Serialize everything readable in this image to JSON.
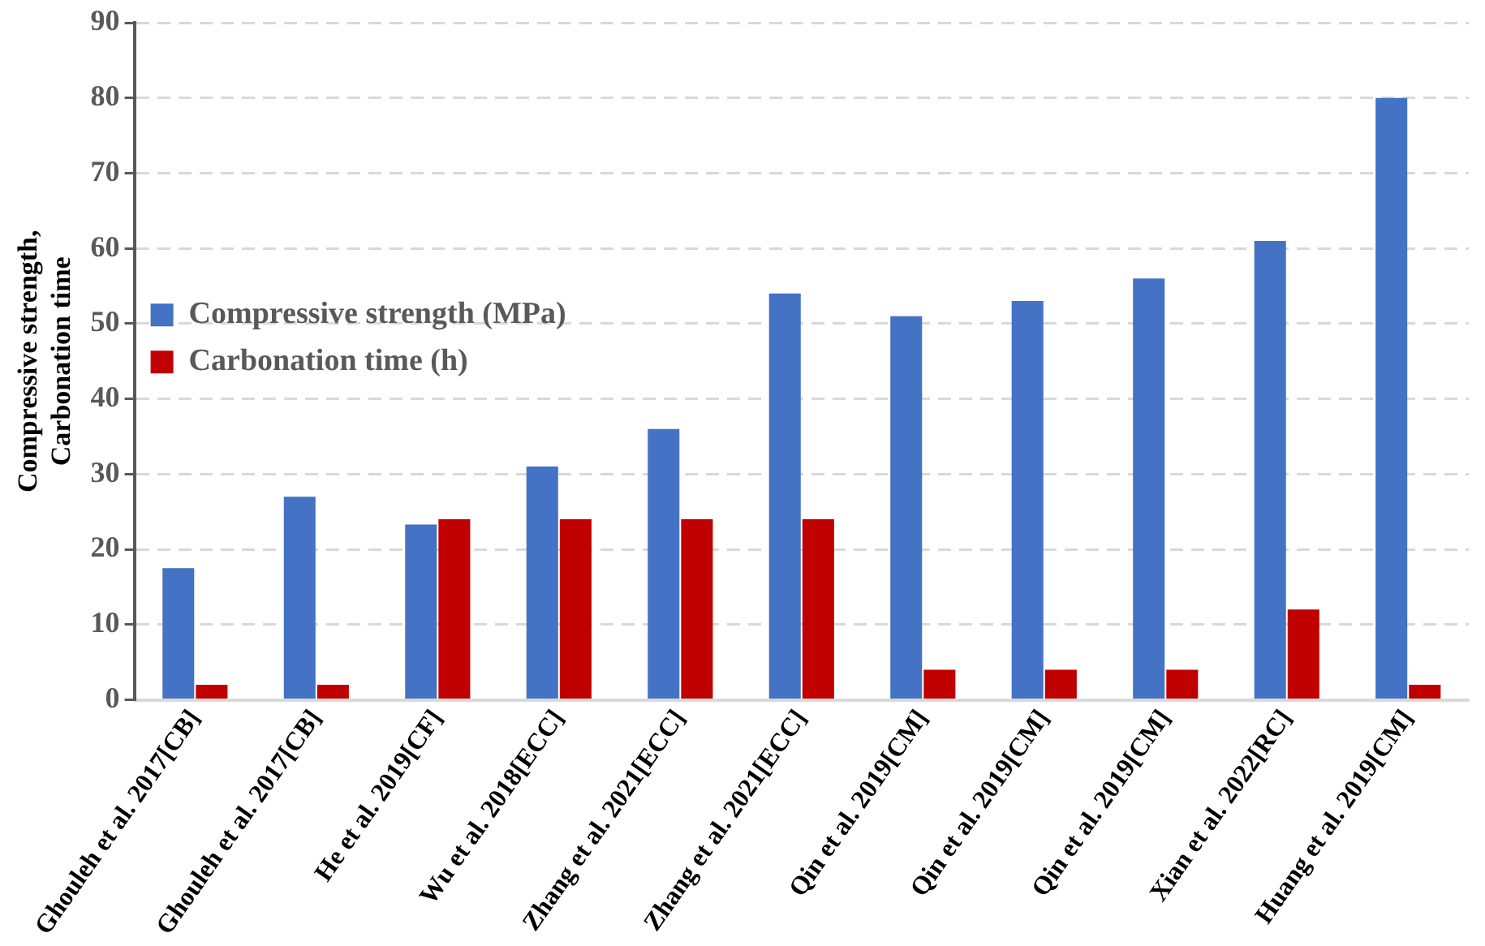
{
  "chart_data": {
    "type": "bar",
    "ylabel": "Compressive strength, Carbonation time",
    "categories": [
      "Ghouleh et al. 2017[CB]",
      "Ghouleh et al. 2017[CB]",
      "He et al. 2019[CF]",
      "Wu et al. 2018[ECC]",
      "Zhang et al. 2021[ECC]",
      "Zhang et al. 2021[ECC]",
      "Qin et al. 2019[CM]",
      "Qin et al. 2019[CM]",
      "Qin et al. 2019[CM]",
      "Xian et al. 2022[RC]",
      "Huang et al. 2019[CM]"
    ],
    "series": [
      {
        "name": "Compressive strength (MPa)",
        "color": "#4472c4",
        "values": [
          17.5,
          27,
          23.3,
          31,
          36,
          54,
          51,
          53,
          56,
          61,
          80
        ]
      },
      {
        "name": "Carbonation time (h)",
        "color": "#c00000",
        "values": [
          2,
          2,
          24,
          24,
          24,
          24,
          4,
          4,
          4,
          12,
          2
        ]
      }
    ],
    "ylim": [
      0,
      90
    ],
    "yticks": [
      0,
      10,
      20,
      30,
      40,
      50,
      60,
      70,
      80,
      90
    ],
    "grid": "y",
    "legend": "top"
  }
}
